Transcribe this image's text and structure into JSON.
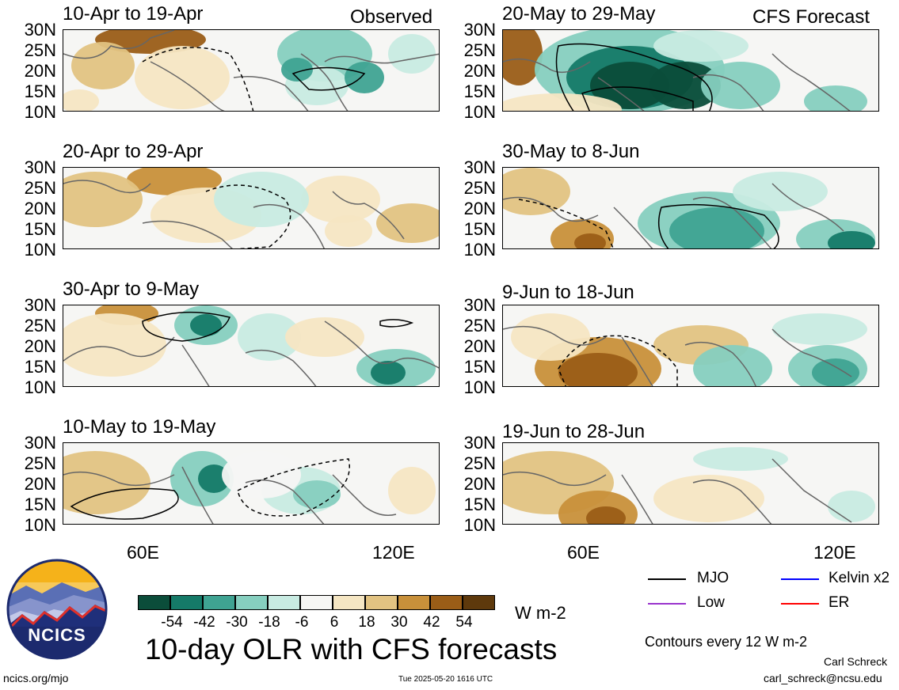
{
  "observed_label": "Observed",
  "forecast_label": "CFS Forecast",
  "panels_left": [
    "10-Apr to 19-Apr",
    "20-Apr to 29-Apr",
    "30-Apr to 9-May",
    "10-May to 19-May"
  ],
  "panels_right": [
    "20-May to 29-May",
    "30-May to 8-Jun",
    "9-Jun to 18-Jun",
    "19-Jun to 28-Jun"
  ],
  "lat_labels": [
    "30N",
    "25N",
    "20N",
    "15N",
    "10N"
  ],
  "lon_labels": [
    "60E",
    "120E"
  ],
  "colorbar": {
    "levels": [
      "-54",
      "-42",
      "-30",
      "-18",
      "-6",
      "6",
      "18",
      "30",
      "42",
      "54"
    ],
    "colors": [
      "#0b4d3a",
      "#157a68",
      "#3fa392",
      "#86cfbf",
      "#c8ebe2",
      "#f6f6f4",
      "#f5e6c3",
      "#e2c382",
      "#c8903a",
      "#9a5d17",
      "#5e390c"
    ],
    "units": "W m-2"
  },
  "main_title": "10-day OLR with CFS forecasts",
  "legend": {
    "mjo": "MJO",
    "kelvin": "Kelvin x2",
    "low": "Low",
    "er": "ER",
    "colors": {
      "mjo": "#000000",
      "kelvin": "#0000ff",
      "low": "#9933cc",
      "er": "#ff0000"
    }
  },
  "contour_note": "Contours every 12 W m-2",
  "author": "Carl Schreck",
  "email": "carl_schreck@ncsu.edu",
  "site": "ncics.org/mjo",
  "timestamp": "Tue 2025-05-20 1616 UTC",
  "logo_text": "NCICS"
}
